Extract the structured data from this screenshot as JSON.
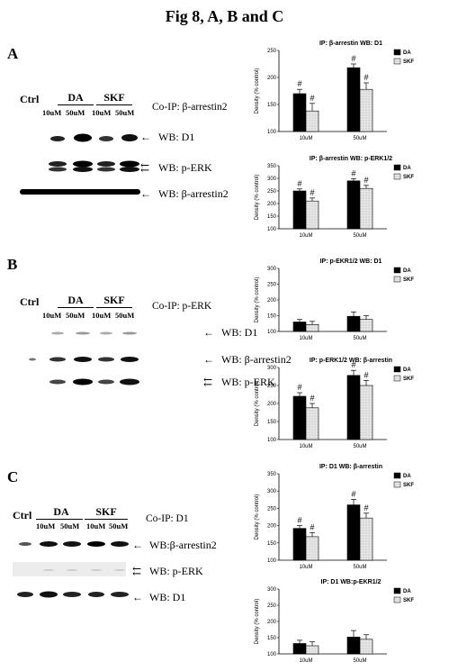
{
  "figure_title": "Fig 8, A, B and C",
  "panels": [
    {
      "letter": "A",
      "ctrl": "Ctrl",
      "groups": [
        "DA",
        "SKF"
      ],
      "doses": [
        "10uM",
        "50uM",
        "10uM",
        "50uM"
      ],
      "coip": "Co-IP:  β-arrestin2",
      "wb_rows": [
        {
          "label": "WB: D1",
          "arrow": "←"
        },
        {
          "label": "WB: p-ERK",
          "arrow": "⇇"
        },
        {
          "label": "WB: β-arrestin2",
          "arrow": "←"
        }
      ]
    },
    {
      "letter": "B",
      "ctrl": "Ctrl",
      "groups": [
        "DA",
        "SKF"
      ],
      "doses": [
        "10uM",
        "50uM",
        "10uM",
        "50uM"
      ],
      "coip": "Co-IP:  p-ERK",
      "wb_rows": [
        {
          "label": "WB: D1",
          "arrow": "←"
        },
        {
          "label": "WB: β-arrestin2",
          "arrow": "←"
        },
        {
          "label": "WB: p-ERK",
          "arrow": "⇇"
        }
      ]
    },
    {
      "letter": "C",
      "ctrl": "Ctrl",
      "groups": [
        "DA",
        "SKF"
      ],
      "doses": [
        "10uM",
        "50uM",
        "10uM",
        "50uM"
      ],
      "coip": "Co-IP: D1",
      "wb_rows": [
        {
          "label": "WB:β-arrestin2",
          "arrow": "←"
        },
        {
          "label": "WB: p-ERK",
          "arrow": "⇇"
        },
        {
          "label": "WB: D1",
          "arrow": "←"
        }
      ]
    }
  ],
  "chart_data": [
    {
      "type": "bar",
      "title": "IP: β-arrestin  WB: D1",
      "ylabel": "Density (% control)",
      "categories": [
        "10uM",
        "50uM"
      ],
      "ylim": [
        100,
        250
      ],
      "yticks": [
        100,
        150,
        200,
        250
      ],
      "series": [
        {
          "name": "DA",
          "values": [
            170,
            218
          ],
          "errors": [
            8,
            7
          ],
          "sig": [
            "#",
            "#"
          ]
        },
        {
          "name": "SKF",
          "values": [
            138,
            178
          ],
          "errors": [
            14,
            12
          ],
          "sig": [
            "#",
            "#"
          ]
        }
      ],
      "legend": "top-right",
      "colors": {
        "DA": "#000000",
        "SKF": "#dcdcdc"
      }
    },
    {
      "type": "bar",
      "title": "IP: β-arrestin  WB: p-ERK1/2",
      "ylabel": "Density (% control)",
      "categories": [
        "10uM",
        "50uM"
      ],
      "ylim": [
        100,
        350
      ],
      "yticks": [
        100,
        150,
        200,
        250,
        300,
        350
      ],
      "series": [
        {
          "name": "DA",
          "values": [
            250,
            290
          ],
          "errors": [
            8,
            8
          ],
          "sig": [
            "#",
            "#"
          ]
        },
        {
          "name": "SKF",
          "values": [
            210,
            260
          ],
          "errors": [
            12,
            12
          ],
          "sig": [
            "#",
            "#"
          ]
        }
      ],
      "legend": "top-right",
      "colors": {
        "DA": "#000000",
        "SKF": "#dcdcdc"
      }
    },
    {
      "type": "bar",
      "title": "IP: p-EKR1/2 WB: D1",
      "ylabel": "Density (% control)",
      "categories": [
        "10uM",
        "50uM"
      ],
      "ylim": [
        100,
        300
      ],
      "yticks": [
        100,
        150,
        200,
        250,
        300
      ],
      "series": [
        {
          "name": "DA",
          "values": [
            130,
            148
          ],
          "errors": [
            8,
            14
          ],
          "sig": [
            "",
            ""
          ]
        },
        {
          "name": "SKF",
          "values": [
            122,
            138
          ],
          "errors": [
            10,
            12
          ],
          "sig": [
            "",
            ""
          ]
        }
      ],
      "legend": "top-right",
      "colors": {
        "DA": "#000000",
        "SKF": "#dcdcdc"
      }
    },
    {
      "type": "bar",
      "title": "IP: p-ERK1/2  WB:  β-arrestin",
      "ylabel": "Density (% control)",
      "categories": [
        "10uM",
        "50uM"
      ],
      "ylim": [
        100,
        300
      ],
      "yticks": [
        100,
        150,
        200,
        250,
        300
      ],
      "series": [
        {
          "name": "DA",
          "values": [
            220,
            278
          ],
          "errors": [
            10,
            14
          ],
          "sig": [
            "#",
            "#"
          ]
        },
        {
          "name": "SKF",
          "values": [
            188,
            250
          ],
          "errors": [
            12,
            14
          ],
          "sig": [
            "#",
            "#"
          ]
        }
      ],
      "legend": "top-right",
      "colors": {
        "DA": "#000000",
        "SKF": "#dcdcdc"
      }
    },
    {
      "type": "bar",
      "title": "IP: D1    WB: β-arrestin",
      "ylabel": "Density (% control)",
      "categories": [
        "10uM",
        "50uM"
      ],
      "ylim": [
        100,
        350
      ],
      "yticks": [
        100,
        150,
        200,
        250,
        300,
        350
      ],
      "series": [
        {
          "name": "DA",
          "values": [
            192,
            260
          ],
          "errors": [
            8,
            16
          ],
          "sig": [
            "#",
            "#"
          ]
        },
        {
          "name": "SKF",
          "values": [
            168,
            222
          ],
          "errors": [
            12,
            14
          ],
          "sig": [
            "#",
            "#"
          ]
        }
      ],
      "legend": "top-right",
      "colors": {
        "DA": "#000000",
        "SKF": "#dcdcdc"
      }
    },
    {
      "type": "bar",
      "title": "IP: D1  WB:p-EKR1/2",
      "ylabel": "Density (% control)",
      "categories": [
        "10uM",
        "50uM"
      ],
      "ylim": [
        100,
        300
      ],
      "yticks": [
        100,
        150,
        200,
        250,
        300
      ],
      "series": [
        {
          "name": "DA",
          "values": [
            132,
            152
          ],
          "errors": [
            10,
            20
          ],
          "sig": [
            "",
            ""
          ]
        },
        {
          "name": "SKF",
          "values": [
            125,
            145
          ],
          "errors": [
            12,
            14
          ],
          "sig": [
            "",
            ""
          ]
        }
      ],
      "legend": "top-right",
      "colors": {
        "DA": "#000000",
        "SKF": "#dcdcdc"
      }
    }
  ]
}
